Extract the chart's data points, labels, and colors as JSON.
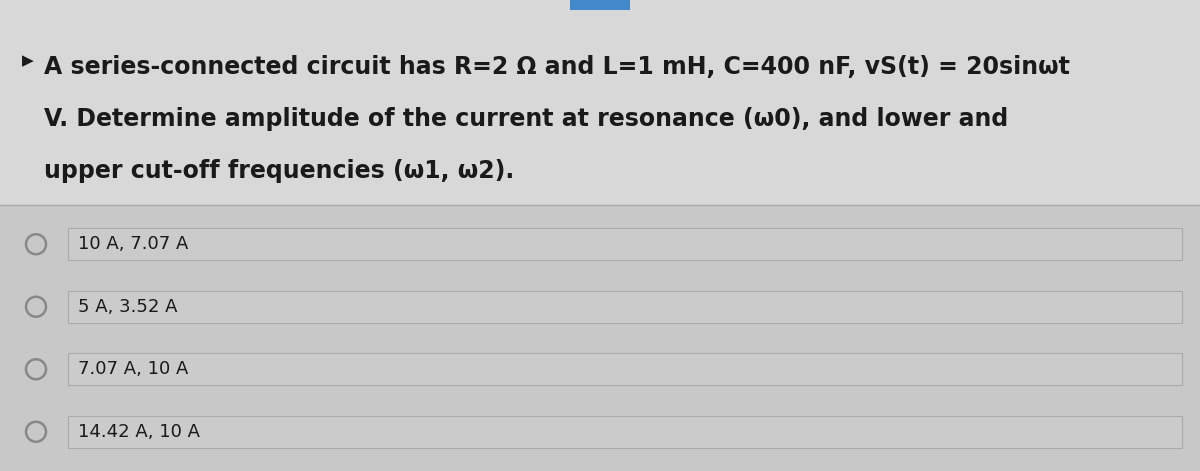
{
  "bg_color": "#c8c8c8",
  "question_area_color": "#d8d8d8",
  "question_text_line1": "A series-connected circuit has R=2 Ω and L=1 mH, C=400 nF, vS(t) = 20sinωt",
  "question_text_line2": "V. Determine amplitude of the current at resonance (ω0), and lower and",
  "question_text_line3": "upper cut-off frequencies (ω1, ω2).",
  "bullet": "▶",
  "options": [
    "10 A, 7.07 A",
    "5 A, 3.52 A",
    "7.07 A, 10 A",
    "14.42 A, 10 A"
  ],
  "option_bg": "#cbcbcb",
  "option_border": "#aaaaaa",
  "divider_color": "#aaaaaa",
  "text_color": "#1a1a1a",
  "radio_color": "#888888",
  "top_bar_color": "#4488cc",
  "font_size_question": 17,
  "font_size_options": 13,
  "fig_width": 12.0,
  "fig_height": 4.71,
  "dpi": 100
}
